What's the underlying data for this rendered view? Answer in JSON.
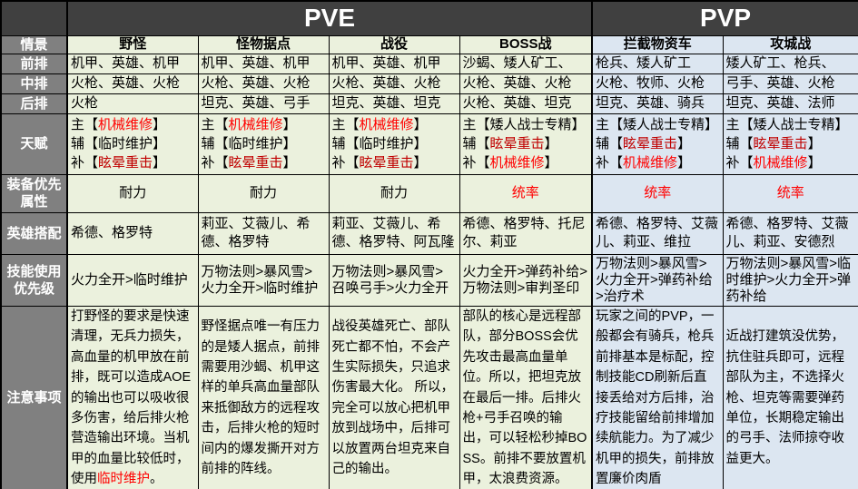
{
  "header": {
    "groups": [
      {
        "label": "PVE"
      },
      {
        "label": "PVP"
      }
    ]
  },
  "row_labels": [
    "情景",
    "前排",
    "中排",
    "后排",
    "天赋",
    "装备优先属性",
    "英雄搭配",
    "技能使用优先级",
    "注意事项"
  ],
  "colors": {
    "header_bg": "#404040",
    "label_bg": "#808080",
    "pve_bg": "#ebf1dd",
    "pvp_bg": "#dce6f1",
    "red": "#ff0000",
    "dark_red": "#c00000"
  },
  "columns": [
    {
      "key": "wild-monsters",
      "group": "PVE",
      "name": "野怪",
      "front": "机甲、英雄、机甲",
      "middle": "火枪、英雄、火枪",
      "back": "火枪",
      "talents": [
        [
          {
            "t": "主【",
            "c": "black"
          },
          {
            "t": "机械维修",
            "c": "red"
          },
          {
            "t": "】",
            "c": "black"
          }
        ],
        [
          {
            "t": "辅【临时维护】",
            "c": "black"
          }
        ],
        [
          {
            "t": "补【",
            "c": "black"
          },
          {
            "t": "眩晕重击",
            "c": "darkred"
          },
          {
            "t": "】",
            "c": "black"
          }
        ]
      ],
      "equip": {
        "t": "耐力",
        "c": "black"
      },
      "heroes": "希德、格罗特",
      "skills": "火力全开>临时维护",
      "notes": [
        {
          "t": "打野怪的要求是快速清理，无兵力损失，高血量的机甲放在前排，既可以造成AOE的输出也可以吸收很多伤害，给后排火枪营造输出环境。当机甲的血量比较低时，使用",
          "c": "black"
        },
        {
          "t": "临时维护",
          "c": "red"
        },
        {
          "t": "。",
          "c": "black"
        }
      ]
    },
    {
      "key": "monster-stronghold",
      "group": "PVE",
      "name": "怪物据点",
      "front": "机甲、英雄、机甲",
      "middle": "火枪、英雄、火枪",
      "back": "坦克、英雄、弓手",
      "talents": [
        [
          {
            "t": "主【",
            "c": "black"
          },
          {
            "t": "机械维修",
            "c": "red"
          },
          {
            "t": "】",
            "c": "black"
          }
        ],
        [
          {
            "t": "辅【临时维护】",
            "c": "black"
          }
        ],
        [
          {
            "t": "补【",
            "c": "black"
          },
          {
            "t": "眩晕重击",
            "c": "darkred"
          },
          {
            "t": "】",
            "c": "black"
          }
        ]
      ],
      "equip": {
        "t": "耐力",
        "c": "black"
      },
      "heroes": "莉亚、艾薇儿、希德、格罗特",
      "skills": "万物法则>暴风雪>火力全开>临时维护",
      "notes": [
        {
          "t": "野怪据点唯一有压力的是矮人据点，前排需要用沙蝎、机甲这样的单兵高血量部队来抵御敌方的远程攻击，后排火枪的短时间内的爆发撕开对方前排的阵线。",
          "c": "black"
        }
      ]
    },
    {
      "key": "campaign",
      "group": "PVE",
      "name": "战役",
      "front": "机甲、英雄、机甲",
      "middle": "火枪、英雄、火枪",
      "back": "坦克、英雄、坦克",
      "talents": [
        [
          {
            "t": "主【",
            "c": "black"
          },
          {
            "t": "机械维修",
            "c": "red"
          },
          {
            "t": "】",
            "c": "black"
          }
        ],
        [
          {
            "t": "辅【临时维护】",
            "c": "black"
          }
        ],
        [
          {
            "t": "补【",
            "c": "black"
          },
          {
            "t": "眩晕重击",
            "c": "darkred"
          },
          {
            "t": "】",
            "c": "black"
          }
        ]
      ],
      "equip": {
        "t": "耐力",
        "c": "black"
      },
      "heroes": "莉亚、艾薇儿、希德、格罗特、阿瓦隆",
      "skills": "万物法则>暴风雪>召唤弓手>火力全开",
      "notes": [
        {
          "t": "战役英雄死亡、部队死亡都不怕，不会产生实际损失，只追求伤害最大化。 所以，完全可以放心把机甲放到战场中，后排可以放置两台坦克来自己的输出。",
          "c": "black"
        }
      ]
    },
    {
      "key": "boss-battle",
      "group": "PVE",
      "name": "BOSS战",
      "front": "沙蝎、矮人矿工、",
      "middle": "火枪、英雄、火枪",
      "back": "火枪、英雄、坦克",
      "talents": [
        [
          {
            "t": "主【矮人战士专精】",
            "c": "black"
          }
        ],
        [
          {
            "t": "辅【",
            "c": "black"
          },
          {
            "t": "眩晕重击",
            "c": "darkred"
          },
          {
            "t": "】",
            "c": "black"
          }
        ],
        [
          {
            "t": "补【",
            "c": "black"
          },
          {
            "t": "机械维修",
            "c": "red"
          },
          {
            "t": "】",
            "c": "black"
          }
        ]
      ],
      "equip": {
        "t": "统率",
        "c": "red"
      },
      "heroes": "希德、格罗特、托尼尔、莉亚",
      "skills": "火力全开>弹药补给>万物法则>审判圣印",
      "notes": [
        {
          "t": "部队的核心是远程部队，部分BOSS会优先攻击最高血量单位。所以，把坦克放在最后一排。后排火枪+弓手召唤的输出，可以轻松秒掉BOSS。前排不要放置机甲，太浪费资源。",
          "c": "black"
        }
      ]
    },
    {
      "key": "intercept-supply-wagon",
      "group": "PVP",
      "name": "拦截物资车",
      "front": "枪兵、矮人矿工",
      "middle": "火枪、牧师、火枪",
      "back": "坦克、英雄、骑兵",
      "talents": [
        [
          {
            "t": "主【矮人战士专精】",
            "c": "black"
          }
        ],
        [
          {
            "t": "辅【",
            "c": "black"
          },
          {
            "t": "眩晕重击",
            "c": "darkred"
          },
          {
            "t": "】",
            "c": "black"
          }
        ],
        [
          {
            "t": "补【",
            "c": "black"
          },
          {
            "t": "机械维修",
            "c": "red"
          },
          {
            "t": "】",
            "c": "black"
          }
        ]
      ],
      "equip": {
        "t": "统率",
        "c": "red"
      },
      "heroes": "希德、格罗特、艾薇儿、莉亚、维拉",
      "skills": "万物法则>暴风雪>火力全开>弹药补给>治疗术",
      "notes": [
        {
          "t": "玩家之间的PVP，一般都会有骑兵，枪兵前排基本是标配，控制技能CD刷新后直接丢给对方后排，治疗技能留给前排增加续航能力。为了减少机甲的损失，前排放置廉价肉盾",
          "c": "black"
        }
      ]
    },
    {
      "key": "siege-battle",
      "group": "PVP",
      "name": "攻城战",
      "front": "矮人矿工、枪兵、",
      "middle": "弓手、英雄、火枪",
      "back": "坦克、英雄、法师",
      "talents": [
        [
          {
            "t": "主【矮人战士专精】",
            "c": "black"
          }
        ],
        [
          {
            "t": "辅【",
            "c": "black"
          },
          {
            "t": "眩晕重击",
            "c": "darkred"
          },
          {
            "t": "】",
            "c": "black"
          }
        ],
        [
          {
            "t": "补【",
            "c": "black"
          },
          {
            "t": "机械维修",
            "c": "red"
          },
          {
            "t": "】",
            "c": "black"
          }
        ]
      ],
      "equip": {
        "t": "统率",
        "c": "red"
      },
      "heroes": "希德、格罗特、艾薇儿、莉亚、安德烈",
      "skills": "万物法则>暴风雪>临时维护>火力全开>弹药补给",
      "notes": [
        {
          "t": "近战打建筑没优势，抗住驻兵即可，远程部队为主，不选择火枪、坦克等需要弹药单位，长期稳定输出的弓手、法师掠夺收益更大。",
          "c": "black"
        }
      ]
    }
  ]
}
